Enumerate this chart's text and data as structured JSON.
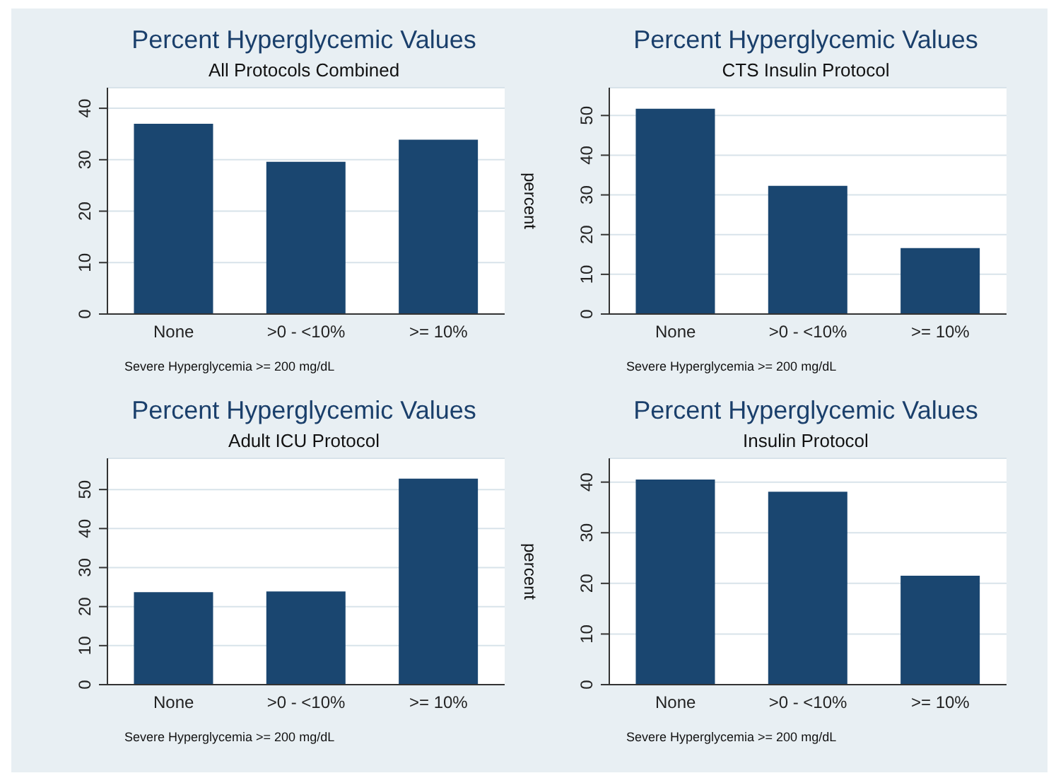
{
  "chart_data": [
    {
      "type": "bar",
      "title": "Percent Hyperglycemic Values",
      "subtitle": "All Protocols Combined",
      "xlabel": "Severe Hyperglycemia >= 200 mg/dL",
      "categories": [
        "None",
        ">0 - <10%",
        ">= 10%"
      ],
      "values": [
        37.0,
        29.6,
        33.9
      ],
      "color": "#1a4670",
      "ylim": [
        0,
        44
      ],
      "yticks": [
        0,
        10,
        20,
        30,
        40
      ],
      "grid": "y"
    },
    {
      "type": "bar",
      "title": "Percent Hyperglycemic Values",
      "subtitle": "CTS Insulin Protocol",
      "xlabel": "Severe Hyperglycemia >= 200 mg/dL",
      "ylabel": "percent",
      "categories": [
        "None",
        ">0 - <10%",
        ">= 10%"
      ],
      "values": [
        51.7,
        32.3,
        16.6
      ],
      "color": "#1a4670",
      "ylim": [
        0,
        57
      ],
      "yticks": [
        0,
        10,
        20,
        30,
        40,
        50
      ],
      "grid": "y"
    },
    {
      "type": "bar",
      "title": "Percent Hyperglycemic Values",
      "subtitle": "Adult ICU Protocol",
      "xlabel": "Severe Hyperglycemia >= 200 mg/dL",
      "categories": [
        "None",
        ">0 - <10%",
        ">= 10%"
      ],
      "values": [
        23.7,
        23.9,
        52.8
      ],
      "color": "#1a4670",
      "ylim": [
        0,
        58
      ],
      "yticks": [
        0,
        10,
        20,
        30,
        40,
        50
      ],
      "grid": "y"
    },
    {
      "type": "bar",
      "title": "Percent Hyperglycemic Values",
      "subtitle": "Insulin Protocol",
      "xlabel": "Severe Hyperglycemia >= 200 mg/dL",
      "ylabel": "percent",
      "categories": [
        "None",
        ">0 - <10%",
        ">= 10%"
      ],
      "values": [
        40.5,
        38.1,
        21.5
      ],
      "color": "#1a4670",
      "ylim": [
        0,
        44.7
      ],
      "yticks": [
        0,
        10,
        20,
        30,
        40
      ],
      "grid": "y"
    }
  ]
}
